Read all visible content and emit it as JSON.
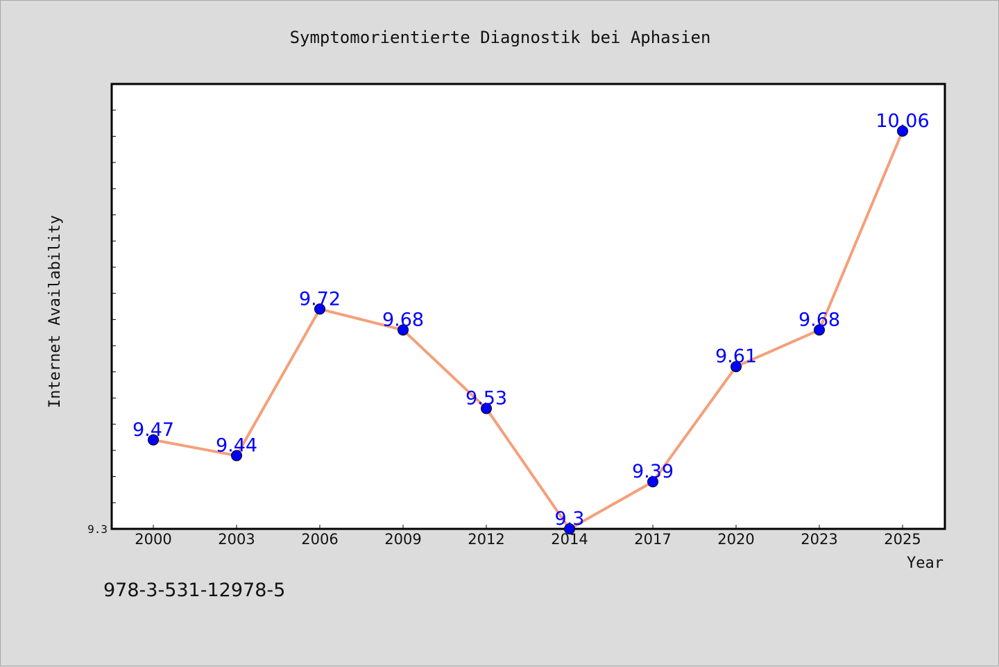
{
  "footer": {
    "isbn": "978-3-531-12978-5"
  },
  "colors": {
    "line": "#f4a07a",
    "marker": "#0000ff",
    "label": "#0000ff",
    "plot_bg": "#ffffff",
    "page_bg": "#dcdcdc"
  },
  "chart_data": {
    "type": "line",
    "title": "Symptomorientierte Diagnostik bei Aphasien",
    "xlabel": "Year",
    "ylabel": "Internet Availability",
    "categories": [
      "2000",
      "2003",
      "2006",
      "2009",
      "2012",
      "2014",
      "2017",
      "2020",
      "2023",
      "2025"
    ],
    "series": [
      {
        "values": [
          9.47,
          9.44,
          9.72,
          9.68,
          9.53,
          9.3,
          9.39,
          9.61,
          9.68,
          10.06
        ]
      }
    ],
    "data_labels": [
      "9.47",
      "9.44",
      "9.72",
      "9.68",
      "9.53",
      "9.3",
      "9.39",
      "9.61",
      "9.68",
      "10.06"
    ],
    "y_tick_labels": [
      "9.3"
    ],
    "ylim": [
      9.3,
      10.15
    ],
    "y_minor_tick_step": 0.05,
    "grid": false,
    "legend": "none"
  }
}
